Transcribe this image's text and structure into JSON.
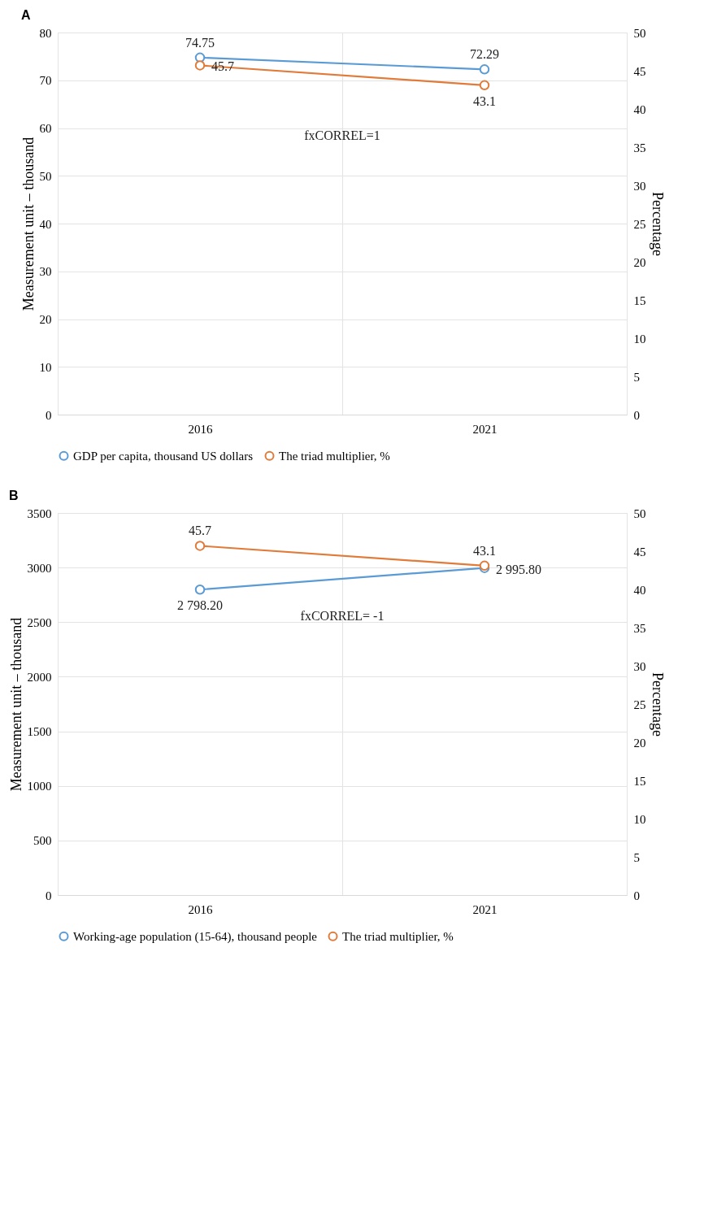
{
  "chart_data": [
    {
      "type": "line",
      "title": "A",
      "categories": [
        "2016",
        "2021"
      ],
      "ylabel": "Measurement unit – thousand",
      "y2label": "Percentage",
      "ylim": [
        0,
        80
      ],
      "yticks": [
        0,
        10,
        20,
        30,
        40,
        50,
        60,
        70,
        80
      ],
      "y2lim": [
        0,
        50
      ],
      "y2ticks": [
        0,
        5,
        10,
        15,
        20,
        25,
        30,
        35,
        40,
        45,
        50
      ],
      "grid": true,
      "legend": "bottom",
      "marker": "circle",
      "annotations": [
        "fxCORREL=1"
      ],
      "series": [
        {
          "name": "GDP per capita, thousand US dollars",
          "color": "#5b9bd5",
          "values": [
            74.75,
            72.29
          ],
          "value_labels": [
            "74.75",
            "72.29"
          ]
        },
        {
          "name": "The triad multiplier, %",
          "color": "#e07b39",
          "axis": "y2",
          "values": [
            45.7,
            43.1
          ],
          "value_labels": [
            "45.7",
            "43.1"
          ]
        }
      ]
    },
    {
      "type": "line",
      "title": "B",
      "categories": [
        "2016",
        "2021"
      ],
      "ylabel": "Measurement unit – thousand",
      "y2label": "Percentage",
      "ylim": [
        0,
        3500
      ],
      "yticks": [
        0,
        500,
        1000,
        1500,
        2000,
        2500,
        3000,
        3500
      ],
      "y2lim": [
        0,
        50
      ],
      "y2ticks": [
        0,
        5,
        10,
        15,
        20,
        25,
        30,
        35,
        40,
        45,
        50
      ],
      "grid": true,
      "legend": "bottom",
      "marker": "circle",
      "annotations": [
        "fxCORREL= -1"
      ],
      "series": [
        {
          "name": "Working-age population (15-64), thousand people",
          "color": "#5b9bd5",
          "values": [
            2798.2,
            2995.8
          ],
          "value_labels": [
            "2 798.20",
            "2 995.80"
          ]
        },
        {
          "name": "The triad multiplier, %",
          "color": "#e07b39",
          "axis": "y2",
          "values": [
            45.7,
            43.1
          ],
          "value_labels": [
            "45.7",
            "43.1"
          ]
        }
      ]
    }
  ]
}
